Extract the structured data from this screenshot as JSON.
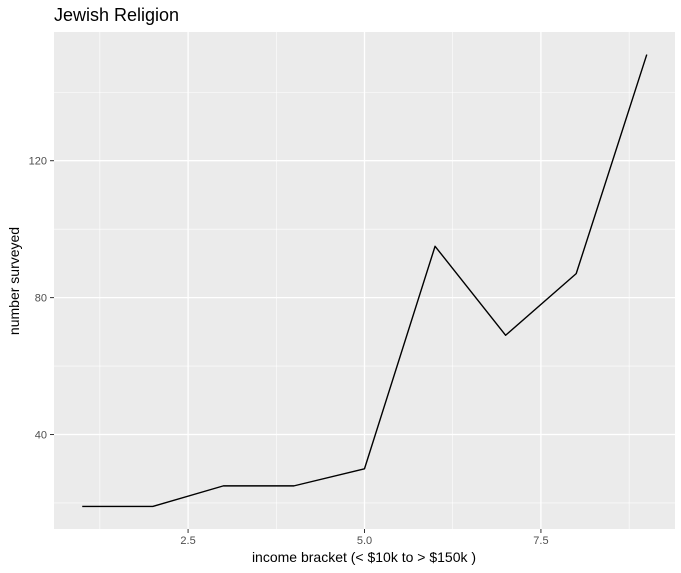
{
  "chart_data": {
    "type": "line",
    "title": "Jewish Religion",
    "xlabel": "income bracket (< $10k to > $150k )",
    "ylabel": "number surveyed",
    "x": [
      1,
      2,
      3,
      4,
      5,
      6,
      7,
      8,
      9
    ],
    "values": [
      19,
      19,
      25,
      25,
      30,
      95,
      69,
      87,
      151
    ],
    "xlim": [
      0.6,
      9.4
    ],
    "ylim": [
      12.4,
      157.6
    ],
    "x_ticks": [
      2.5,
      5.0,
      7.5
    ],
    "x_tick_labels": [
      "2.5",
      "5.0",
      "7.5"
    ],
    "y_ticks": [
      40,
      80,
      120
    ],
    "y_tick_labels": [
      "40",
      "80",
      "120"
    ],
    "grid": true,
    "legend": "none",
    "colors": {
      "panel_background": "#ebebeb",
      "grid_major": "#ffffff",
      "line": "#000000",
      "tick_mark": "#333333"
    }
  }
}
